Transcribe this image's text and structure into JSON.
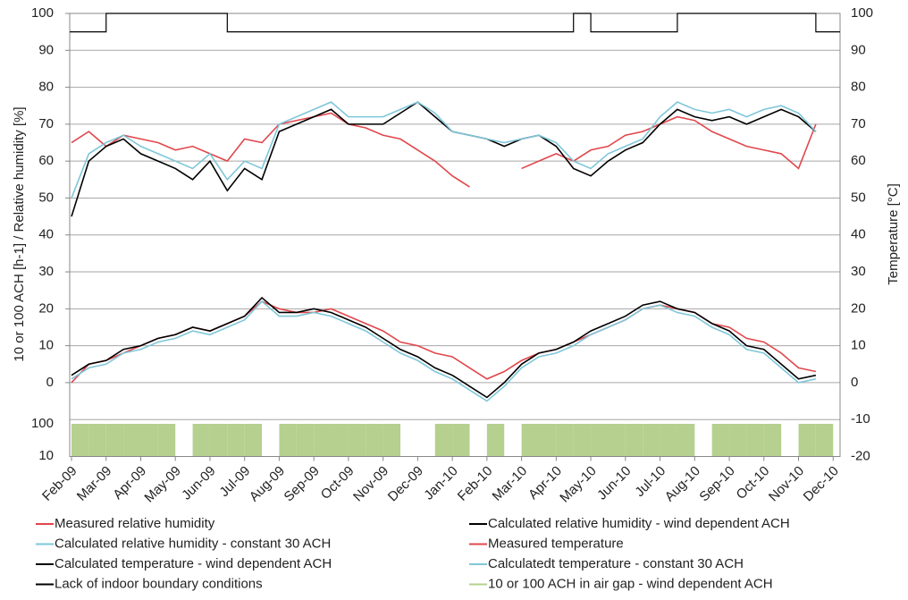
{
  "chart_data": {
    "type": "line",
    "y_label": "10 or 100 ACH [h-1] / Relative humidity [%]",
    "y2_label": "Temperature [°C]",
    "x": [
      0,
      0.5,
      1,
      1.5,
      2,
      2.5,
      3,
      3.5,
      4,
      4.5,
      5,
      5.5,
      6,
      6.5,
      7,
      7.5,
      8,
      8.5,
      9,
      9.5,
      10,
      10.5,
      11,
      11.5,
      12,
      12.5,
      13,
      13.5,
      14,
      14.5,
      15,
      15.5,
      16,
      16.5,
      17,
      17.5,
      18,
      18.5,
      19,
      19.5,
      20,
      20.5,
      21,
      21.5
    ],
    "xlim": [
      0,
      22.2
    ],
    "xticks": [
      {
        "value": 0,
        "label": "Feb-09"
      },
      {
        "value": 1,
        "label": "Mar-09"
      },
      {
        "value": 2,
        "label": "Apr-09"
      },
      {
        "value": 3,
        "label": "May-09"
      },
      {
        "value": 4,
        "label": "Jun-09"
      },
      {
        "value": 5,
        "label": "Jul-09"
      },
      {
        "value": 6,
        "label": "Aug-09"
      },
      {
        "value": 7,
        "label": "Sep-09"
      },
      {
        "value": 8,
        "label": "Oct-09"
      },
      {
        "value": 9,
        "label": "Nov-09"
      },
      {
        "value": 10,
        "label": "Dec-09"
      },
      {
        "value": 11,
        "label": "Jan-10"
      },
      {
        "value": 12,
        "label": "Feb-10"
      },
      {
        "value": 13,
        "label": "Mar-10"
      },
      {
        "value": 14,
        "label": "Apr-10"
      },
      {
        "value": 15,
        "label": "May-10"
      },
      {
        "value": 16,
        "label": "Jun-10"
      },
      {
        "value": 17,
        "label": "Jul-10"
      },
      {
        "value": 18,
        "label": "Aug-10"
      },
      {
        "value": 19,
        "label": "Sep-10"
      },
      {
        "value": 20,
        "label": "Oct-10"
      },
      {
        "value": 21,
        "label": "Nov-10"
      },
      {
        "value": 22,
        "label": "Dec-10"
      }
    ],
    "ylim": [
      -20,
      100
    ],
    "yticks": [
      0,
      10,
      20,
      30,
      40,
      50,
      60,
      70,
      80,
      90,
      100
    ],
    "y2lim": [
      -20,
      100
    ],
    "y2ticks": [
      -20,
      -10,
      0,
      10,
      20,
      30,
      40,
      50,
      60,
      70,
      80,
      90,
      100
    ],
    "ach_ylim": [
      10,
      100
    ],
    "ach_yticks": [
      100,
      10
    ],
    "grid": true,
    "series": [
      {
        "name": "Measured relative humidity",
        "color": "#e0474c",
        "style": "line",
        "values": [
          65,
          68,
          64,
          67,
          66,
          65,
          63,
          64,
          62,
          60,
          66,
          65,
          70,
          71,
          72,
          73,
          70,
          69,
          67,
          66,
          63,
          60,
          56,
          53,
          null,
          null,
          58,
          60,
          62,
          60,
          63,
          64,
          67,
          68,
          70,
          72,
          71,
          68,
          66,
          64,
          63,
          62,
          58,
          70
        ]
      },
      {
        "name": "Calculated relative humidity - wind dependent ACH",
        "color": "#000000",
        "style": "line",
        "values": [
          45,
          60,
          64,
          66,
          62,
          60,
          58,
          55,
          60,
          52,
          58,
          55,
          68,
          70,
          72,
          74,
          70,
          70,
          70,
          73,
          76,
          72,
          68,
          67,
          66,
          64,
          66,
          67,
          64,
          58,
          56,
          60,
          63,
          65,
          70,
          74,
          72,
          71,
          72,
          70,
          72,
          74,
          72,
          68
        ]
      },
      {
        "name": "Calculated relative humidity - constant 30 ACH",
        "color": "#7fc7d9",
        "style": "line",
        "values": [
          50,
          62,
          65,
          67,
          64,
          62,
          60,
          58,
          62,
          55,
          60,
          58,
          70,
          72,
          74,
          76,
          72,
          72,
          72,
          74,
          76,
          73,
          68,
          67,
          66,
          65,
          66,
          67,
          65,
          60,
          58,
          62,
          64,
          66,
          72,
          76,
          74,
          73,
          74,
          72,
          74,
          75,
          73,
          68
        ]
      },
      {
        "name": "Measured temperature",
        "color": "#e0474c",
        "style": "line",
        "axis": "y2",
        "values": [
          0,
          5,
          6,
          8,
          10,
          12,
          13,
          15,
          14,
          16,
          18,
          22,
          20,
          19,
          19,
          20,
          18,
          16,
          14,
          11,
          10,
          8,
          7,
          4,
          1,
          3,
          6,
          8,
          9,
          11,
          13,
          15,
          17,
          20,
          21,
          20,
          19,
          16,
          15,
          12,
          11,
          8,
          4,
          3
        ]
      },
      {
        "name": "Calculated temperature - wind dependent ACH",
        "color": "#000000",
        "style": "line",
        "axis": "y2",
        "values": [
          2,
          5,
          6,
          9,
          10,
          12,
          13,
          15,
          14,
          16,
          18,
          23,
          19,
          19,
          20,
          19,
          17,
          15,
          12,
          9,
          7,
          4,
          2,
          -1,
          -4,
          0,
          5,
          8,
          9,
          11,
          14,
          16,
          18,
          21,
          22,
          20,
          19,
          16,
          14,
          10,
          9,
          5,
          1,
          2
        ]
      },
      {
        "name": "Calculatedt temperature - constant 30 ACH",
        "color": "#7fc7d9",
        "style": "line",
        "axis": "y2",
        "values": [
          1,
          4,
          5,
          8,
          9,
          11,
          12,
          14,
          13,
          15,
          17,
          22,
          18,
          18,
          19,
          18,
          16,
          14,
          11,
          8,
          6,
          3,
          1,
          -2,
          -5,
          -1,
          4,
          7,
          8,
          10,
          13,
          15,
          17,
          20,
          21,
          19,
          18,
          15,
          13,
          9,
          8,
          4,
          0,
          1
        ]
      },
      {
        "name": "Lack of indoor boundary conditions",
        "color": "#000000",
        "style": "step",
        "values": [
          95,
          95,
          100,
          100,
          100,
          100,
          100,
          100,
          100,
          95,
          95,
          95,
          95,
          95,
          95,
          95,
          95,
          95,
          95,
          95,
          95,
          95,
          95,
          95,
          95,
          95,
          95,
          95,
          95,
          100,
          95,
          95,
          95,
          95,
          95,
          100,
          100,
          100,
          100,
          100,
          100,
          100,
          100,
          95
        ]
      },
      {
        "name": "10 or 100 ACH in air gap - wind dependent ACH",
        "color": "#b5d08f",
        "style": "ach",
        "values": [
          100,
          100,
          100,
          100,
          100,
          100,
          10,
          100,
          100,
          100,
          100,
          10,
          100,
          100,
          100,
          100,
          100,
          100,
          100,
          10,
          10,
          100,
          100,
          10,
          100,
          10,
          100,
          100,
          100,
          100,
          100,
          100,
          100,
          100,
          100,
          100,
          10,
          100,
          100,
          100,
          100,
          10,
          100,
          100
        ]
      }
    ]
  }
}
